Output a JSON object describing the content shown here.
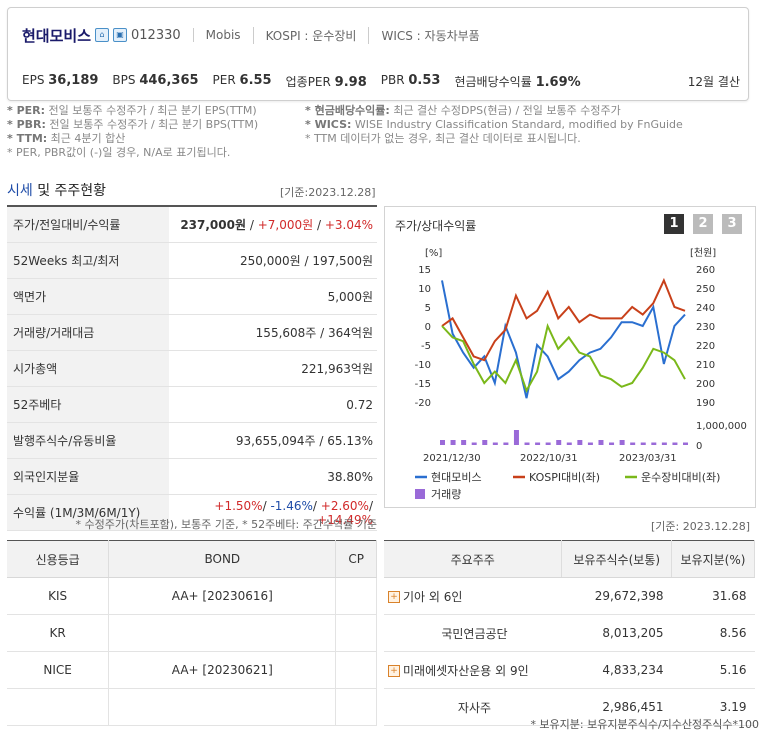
{
  "header": {
    "company": "현대모비스",
    "code": "012330",
    "eng": "Mobis",
    "market": "KOSPI : 운수장비",
    "wics": "WICS : 자동차부품",
    "icons": [
      "home-icon",
      "building-icon"
    ],
    "metrics": [
      {
        "label": "EPS",
        "value": "36,189"
      },
      {
        "label": "BPS",
        "value": "446,365"
      },
      {
        "label": "PER",
        "value": "6.55"
      },
      {
        "label": "업종PER",
        "value": "9.98"
      },
      {
        "label": "PBR",
        "value": "0.53"
      },
      {
        "label": "현금배당수익률",
        "value": "1.69%"
      }
    ],
    "settlement": "12월 결산"
  },
  "notes": {
    "left": [
      {
        "key": "* PER:",
        "text": " 전일 보통주 수정주가 / 최근 분기 EPS(TTM)"
      },
      {
        "key": "* PBR:",
        "text": " 전일 보통주 수정주가 / 최근 분기 BPS(TTM)"
      },
      {
        "key": "* TTM:",
        "text": " 최근 4분기 합산"
      },
      {
        "key": "",
        "text": "* PER, PBR값이 (-)일 경우, N/A로 표기됩니다."
      }
    ],
    "right": [
      {
        "key": "* 현금배당수익률:",
        "text": " 최근 결산 수정DPS(현금) / 전일 보통주 수정주가"
      },
      {
        "key": "* WICS:",
        "text": " WISE Industry Classification Standard, modified by FnGuide"
      },
      {
        "key": "",
        "text": "* TTM 데이터가 없는 경우, 최근 결산 데이터로 표시됩니다."
      }
    ]
  },
  "section": {
    "title_hl": "시세",
    "title_rest": " 및 주주현황",
    "ref_date": "[기준:2023.12.28]"
  },
  "quote": {
    "rows": [
      {
        "label": "주가/전일대비/수익률",
        "parts": [
          {
            "t": "237,000원",
            "c": "bold"
          },
          {
            "t": " / ",
            "c": ""
          },
          {
            "t": "+7,000원",
            "c": "red"
          },
          {
            "t": " / ",
            "c": ""
          },
          {
            "t": "+3.04%",
            "c": "red"
          }
        ]
      },
      {
        "label": "52Weeks 최고/최저",
        "parts": [
          {
            "t": "250,000원 / 197,500원",
            "c": ""
          }
        ]
      },
      {
        "label": "액면가",
        "parts": [
          {
            "t": "5,000원",
            "c": ""
          }
        ]
      },
      {
        "label": "거래량/거래대금",
        "parts": [
          {
            "t": "155,608주 / 364억원",
            "c": ""
          }
        ]
      },
      {
        "label": "시가총액",
        "parts": [
          {
            "t": "221,963억원",
            "c": ""
          }
        ]
      },
      {
        "label": "52주베타",
        "parts": [
          {
            "t": "0.72",
            "c": ""
          }
        ]
      },
      {
        "label": "발행주식수/유동비율",
        "parts": [
          {
            "t": "93,655,094주 / 65.13%",
            "c": ""
          }
        ]
      },
      {
        "label": "외국인지분율",
        "parts": [
          {
            "t": "38.80%",
            "c": ""
          }
        ]
      },
      {
        "label": "수익률 (1M/3M/6M/1Y)",
        "parts": [
          {
            "t": "+1.50%",
            "c": "red"
          },
          {
            "t": "/ ",
            "c": ""
          },
          {
            "t": "-1.46%",
            "c": "blue"
          },
          {
            "t": "/ ",
            "c": ""
          },
          {
            "t": "+2.60%",
            "c": "red"
          },
          {
            "t": "/ ",
            "c": ""
          },
          {
            "t": "+14.49%",
            "c": "red"
          }
        ]
      }
    ],
    "footnote": "* 수정주가(차트포함), 보통주 기준, * 52주베타: 주간수익률 기준"
  },
  "chart_data": {
    "type": "line",
    "title": "주가/상대수익률",
    "pages": [
      "1",
      "2",
      "3"
    ],
    "y_left_unit": "[%]",
    "y_left_ticks": [
      "15",
      "10",
      "5",
      "0",
      "-5",
      "-10",
      "-15",
      "-20"
    ],
    "ylim_left": [
      -20,
      15
    ],
    "y_right_unit": "[천원]",
    "y_right_ticks": [
      "260",
      "250",
      "240",
      "230",
      "220",
      "210",
      "200",
      "190"
    ],
    "ylim_right": [
      190,
      260
    ],
    "volume_ticks": [
      "1,000,000",
      "0"
    ],
    "x_ticks": [
      "2021/12/30",
      "2022/10/31",
      "2023/03/31"
    ],
    "series": [
      {
        "name": "현대모비스",
        "color": "#2a6fd0",
        "values": [
          12,
          -2,
          -7,
          -11,
          -8,
          -15,
          0,
          -7,
          -19,
          -5,
          -8,
          -14,
          -12,
          -9,
          -7,
          -6,
          -3,
          1,
          1,
          0,
          5,
          -10,
          0,
          3
        ]
      },
      {
        "name": "KOSPI대비(좌)",
        "color": "#c8401a",
        "values": [
          0,
          2,
          -3,
          -8,
          -9,
          -4,
          -1,
          8,
          2,
          4,
          9,
          2,
          5,
          1,
          3,
          2,
          2,
          2,
          5,
          3,
          6,
          12,
          5,
          4
        ]
      },
      {
        "name": "운수장비대비(좌)",
        "color": "#7ab81a",
        "values": [
          0,
          -3,
          -4,
          -10,
          -15,
          -12,
          -15,
          -9,
          -17,
          -12,
          0,
          -6,
          -3,
          -7,
          -8,
          -13,
          -14,
          -16,
          -15,
          -11,
          -6,
          -7,
          -9,
          -14
        ]
      },
      {
        "name": "거래량",
        "color": "#9a6ad8",
        "values": [
          2,
          2,
          2,
          1,
          2,
          1,
          1,
          6,
          1,
          1,
          1,
          2,
          1,
          2,
          1,
          2,
          1,
          2,
          1,
          1,
          1,
          1,
          1,
          1
        ]
      }
    ]
  },
  "credit": {
    "headers": [
      "신용등급",
      "BOND",
      "CP"
    ],
    "rows": [
      [
        "KIS",
        "AA+ [20230616]",
        ""
      ],
      [
        "KR",
        "",
        ""
      ],
      [
        "NICE",
        "AA+ [20230621]",
        ""
      ],
      [
        "",
        "",
        ""
      ]
    ]
  },
  "holders": {
    "ref_date": "[기준: 2023.12.28]",
    "headers": [
      "주요주주",
      "보유주식수(보통)",
      "보유지분(%)"
    ],
    "rows": [
      {
        "name": "기아 외 6인",
        "plus": true,
        "shares": "29,672,398",
        "pct": "31.68"
      },
      {
        "name": "국민연금공단",
        "plus": false,
        "shares": "8,013,205",
        "pct": "8.56"
      },
      {
        "name": "미래에셋자산운용 외 9인",
        "plus": true,
        "shares": "4,833,234",
        "pct": "5.16"
      },
      {
        "name": "자사주",
        "plus": false,
        "shares": "2,986,451",
        "pct": "3.19"
      }
    ],
    "footnote": "* 보유지분: 보유지분주식수/지수산정주식수*100"
  }
}
